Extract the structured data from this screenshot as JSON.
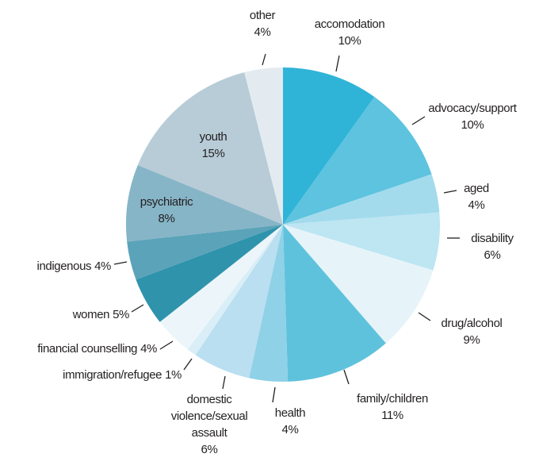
{
  "chart_data": {
    "type": "pie",
    "categories": [
      "accomodation",
      "advocacy/support",
      "aged",
      "disability",
      "drug/alcohol",
      "family/children",
      "health",
      "domestic violence/sexual assault",
      "immigration/refugee",
      "financial counselling",
      "women",
      "indigenous",
      "psychiatric",
      "youth",
      "other"
    ],
    "values": [
      10,
      10,
      4,
      6,
      9,
      11,
      4,
      6,
      1,
      4,
      5,
      4,
      8,
      15,
      4
    ],
    "value_labels": [
      "10%",
      "10%",
      "4%",
      "6%",
      "9%",
      "11%",
      "4%",
      "6%",
      "1%",
      "4%",
      "5%",
      "4%",
      "8%",
      "15%",
      "4%"
    ],
    "colors": [
      "#2fb4d8",
      "#5dc3df",
      "#a3dbed",
      "#bde5f2",
      "#e6f4f9",
      "#5fc2dd",
      "#8fd1e6",
      "#b9dff0",
      "#d9eef6",
      "#ecf6fa",
      "#2f93ac",
      "#5ba3b9",
      "#86b5c7",
      "#b7ccd7",
      "#e3ebf0"
    ]
  }
}
